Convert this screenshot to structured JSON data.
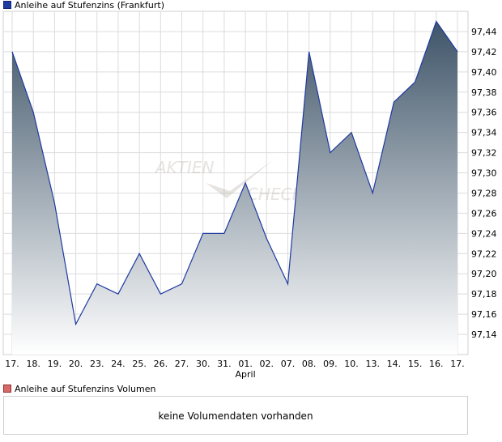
{
  "legend": {
    "price_label": "Anleihe auf Stufenzins (Frankfurt)",
    "volume_label": "Anleihe auf Stufenzins Volumen"
  },
  "volume": {
    "message": "keine Volumendaten vorhanden"
  },
  "watermark": {
    "text1": "AKTIEN",
    "text2": "CHECK"
  },
  "chart_data": {
    "type": "area",
    "categories": [
      "17.",
      "18.",
      "19.",
      "20.",
      "23.",
      "24.",
      "25.",
      "26.",
      "27.",
      "30.",
      "31.",
      "01.",
      "02.",
      "07.",
      "08.",
      "09.",
      "10.",
      "13.",
      "14.",
      "15.",
      "16.",
      "17."
    ],
    "month_label": {
      "text": "April",
      "at_category_index": 11
    },
    "series": [
      {
        "name": "Anleihe auf Stufenzins (Frankfurt)",
        "values": [
          97.42,
          97.36,
          97.27,
          97.15,
          97.19,
          97.18,
          97.22,
          97.18,
          97.19,
          97.24,
          97.24,
          97.29,
          97.235,
          97.19,
          97.42,
          97.32,
          97.34,
          97.28,
          97.37,
          97.39,
          97.45,
          97.42
        ]
      }
    ],
    "y_ticks": [
      "97,14",
      "97,16",
      "97,18",
      "97,20",
      "97,22",
      "97,24",
      "97,26",
      "97,28",
      "97,30",
      "97,32",
      "97,34",
      "97,36",
      "97,38",
      "97,40",
      "97,42",
      "97,44"
    ],
    "ylim": [
      97.12,
      97.46
    ],
    "grid": true,
    "colors": {
      "line": "#1f3aa0",
      "fill_top": "#3e5468",
      "fill_bottom": "#ffffff",
      "grid": "#dcdcdc"
    }
  }
}
